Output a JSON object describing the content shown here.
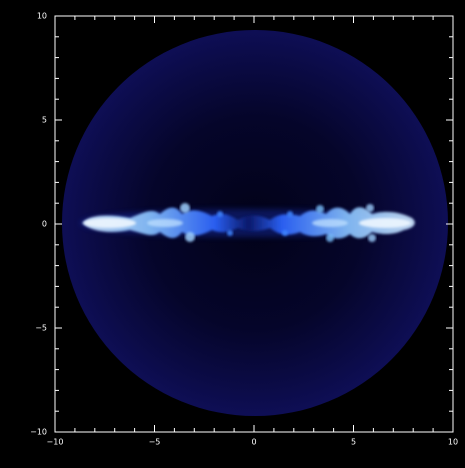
{
  "image_description": "Simulated astrophysical jet / disk outflow, shown as a horizontal bright-blue turbulent structure inside a faint dark-blue circular region on a black background.",
  "colors": {
    "background": "#000000",
    "axis": "#ffffff",
    "sphere_outer": "#0b0b4a",
    "sphere_inner": "#05052a",
    "jet_core": "#e6f3ff",
    "jet_mid": "#5aa7ff",
    "jet_edge": "#1f4fd1"
  },
  "plot": {
    "x_ticks": [
      "−10",
      "−5",
      "0",
      "5",
      "10"
    ],
    "y_ticks": [
      "10",
      "5",
      "0",
      "−5",
      "−10"
    ],
    "x_range": [
      -10,
      10
    ],
    "y_range": [
      -10,
      10
    ],
    "minor_tick_step": 1,
    "major_tick_step": 5
  }
}
